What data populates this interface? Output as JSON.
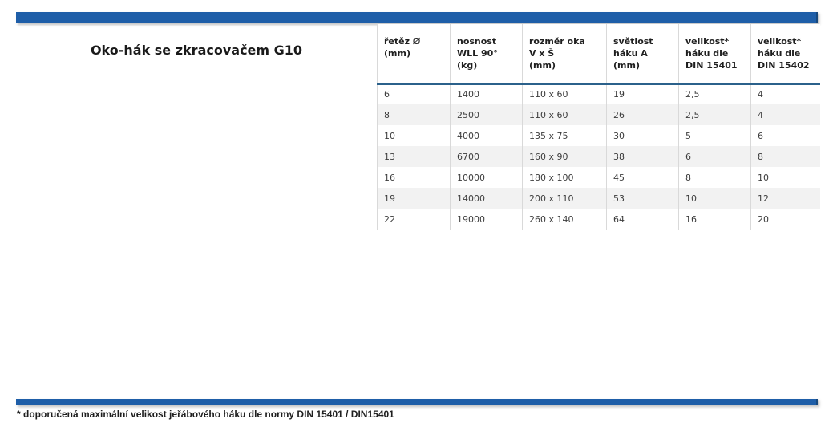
{
  "title": "Oko-hák se zkracovačem G10",
  "accent": {
    "bar_color": "#1E5EA8",
    "header_rule_color": "#2B618B",
    "row_alt_color": "#F2F2F2",
    "grid_color": "#D9D9D9"
  },
  "table": {
    "columns": [
      {
        "label": "řetěz Ø\n(mm)"
      },
      {
        "label": "nosnost\nWLL 90°\n(kg)"
      },
      {
        "label": "rozměr oka\nV x Š\n(mm)"
      },
      {
        "label": "světlost\nháku A\n(mm)"
      },
      {
        "label": "velikost*\nháku dle\nDIN 15401"
      },
      {
        "label": "velikost*\nháku dle\nDIN 15402"
      }
    ],
    "rows": [
      [
        "6",
        "1400",
        "110 x 60",
        "19",
        "2,5",
        "4"
      ],
      [
        "8",
        "2500",
        "110 x 60",
        "26",
        "2,5",
        "4"
      ],
      [
        "10",
        "4000",
        "135 x 75",
        "30",
        "5",
        "6"
      ],
      [
        "13",
        "6700",
        "160 x 90",
        "38",
        "6",
        "8"
      ],
      [
        "16",
        "10000",
        "180 x 100",
        "45",
        "8",
        "10"
      ],
      [
        "19",
        "14000",
        "200 x 110",
        "53",
        "10",
        "12"
      ],
      [
        "22",
        "19000",
        "260 x 140",
        "64",
        "16",
        "20"
      ]
    ]
  },
  "footnote": "* doporučená maximální velikost jeřábového háku dle normy DIN 15401 / DIN15401"
}
